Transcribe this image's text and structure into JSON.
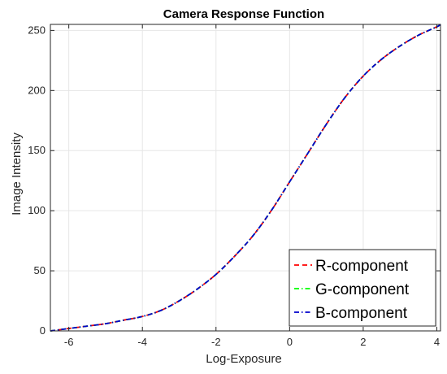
{
  "chart_data": {
    "type": "line",
    "title": "Camera Response Function",
    "xlabel": "Log-Exposure",
    "ylabel": "Image Intensity",
    "xlim": [
      -6.5,
      4.1
    ],
    "ylim": [
      0,
      255
    ],
    "xticks": [
      -6,
      -4,
      -2,
      0,
      2,
      4
    ],
    "yticks": [
      0,
      50,
      100,
      150,
      200,
      250
    ],
    "grid": true,
    "legend_position": "bottom-right",
    "series": [
      {
        "name": "R-component",
        "color": "#ff0000",
        "dash": "dashed",
        "x": [
          -6.5,
          -6,
          -5.5,
          -5,
          -4.5,
          -4,
          -3.5,
          -3,
          -2.5,
          -2,
          -1.5,
          -1,
          -0.5,
          0,
          0.5,
          1,
          1.5,
          2,
          2.5,
          3,
          3.5,
          4,
          4.1
        ],
        "y": [
          0,
          2,
          4,
          6,
          9,
          12,
          17,
          25,
          35,
          47,
          62,
          79,
          100,
          124,
          148,
          172,
          194,
          212,
          226,
          237,
          246,
          253,
          255
        ]
      },
      {
        "name": "G-component",
        "color": "#00ff00",
        "dash": "dashdot",
        "x": [
          -6.5,
          -6,
          -5.5,
          -5,
          -4.5,
          -4,
          -3.5,
          -3,
          -2.5,
          -2,
          -1.5,
          -1,
          -0.5,
          0,
          0.5,
          1,
          1.5,
          2,
          2.5,
          3,
          3.5,
          4,
          4.1
        ],
        "y": [
          0,
          2,
          4,
          6,
          9,
          12,
          17,
          25,
          35,
          47,
          62,
          79,
          100,
          124,
          148,
          172,
          194,
          212,
          226,
          237,
          246,
          253,
          255
        ]
      },
      {
        "name": "B-component",
        "color": "#0000cc",
        "dash": "dashdot",
        "x": [
          -6.5,
          -6,
          -5.5,
          -5,
          -4.5,
          -4,
          -3.5,
          -3,
          -2.5,
          -2,
          -1.5,
          -1,
          -0.5,
          0,
          0.5,
          1,
          1.5,
          2,
          2.5,
          3,
          3.5,
          4,
          4.1
        ],
        "y": [
          0,
          2,
          4,
          6,
          9,
          12,
          17,
          25,
          35,
          47,
          62,
          79,
          100,
          124,
          148,
          172,
          194,
          212,
          226,
          237,
          246,
          253,
          255
        ]
      }
    ]
  }
}
